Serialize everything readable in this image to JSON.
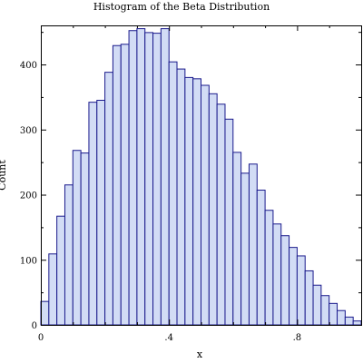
{
  "chart_data": {
    "type": "bar",
    "title": "Histogram of the Beta Distribution",
    "xlabel": "x",
    "ylabel": "Count",
    "xlim": [
      0,
      1
    ],
    "ylim": [
      0,
      460
    ],
    "bin_width": 0.025,
    "x_ticks": [
      0,
      0.4,
      0.8
    ],
    "x_tick_labels": [
      "0",
      ".4",
      ".8"
    ],
    "y_ticks": [
      0,
      100,
      200,
      300,
      400
    ],
    "y_tick_labels": [
      "0",
      "100",
      "200",
      "300",
      "400"
    ],
    "bin_starts": [
      0,
      0.025,
      0.05,
      0.075,
      0.1,
      0.125,
      0.15,
      0.175,
      0.2,
      0.225,
      0.25,
      0.275,
      0.3,
      0.325,
      0.35,
      0.375,
      0.4,
      0.425,
      0.45,
      0.475,
      0.5,
      0.525,
      0.55,
      0.575,
      0.6,
      0.625,
      0.65,
      0.675,
      0.7,
      0.725,
      0.75,
      0.775,
      0.8,
      0.825,
      0.85,
      0.875,
      0.9,
      0.925,
      0.95,
      0.975
    ],
    "values": [
      36,
      109,
      167,
      215,
      268,
      264,
      342,
      345,
      388,
      429,
      431,
      452,
      455,
      449,
      448,
      455,
      404,
      393,
      380,
      378,
      368,
      355,
      339,
      316,
      265,
      233,
      247,
      207,
      176,
      155,
      137,
      119,
      106,
      83,
      61,
      45,
      33,
      22,
      12,
      6
    ],
    "color": "#d2dcf5",
    "edge_color": "#1a1a8c",
    "grid": false
  }
}
